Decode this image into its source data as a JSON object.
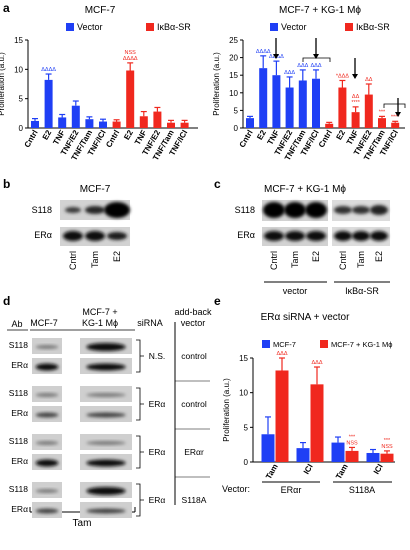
{
  "panels": {
    "a": "a",
    "b": "b",
    "c": "c",
    "d": "d",
    "e": "e"
  },
  "colors": {
    "vector": "#1f3ff5",
    "ikba": "#f0281e",
    "blot_bg": "#c8c8c8",
    "band": "#141414"
  },
  "chart_data": [
    {
      "panel": "a-left",
      "type": "bar",
      "title": "MCF-7",
      "ylabel": "Proliferation (a.u.)",
      "ylim": [
        0,
        15
      ],
      "yticks": [
        "0",
        "5",
        "10",
        "15"
      ],
      "categories": [
        "Cntrl",
        "E2",
        "TNF",
        "TNF/E2",
        "TNF/Tam",
        "TNF/ICI"
      ],
      "legend": [
        "Vector",
        "IκBα-SR"
      ],
      "series": [
        {
          "name": "Vector",
          "values": [
            1.2,
            8.2,
            1.8,
            3.8,
            1.5,
            1.1
          ],
          "errors": [
            0.4,
            1.0,
            0.5,
            0.8,
            0.4,
            0.4
          ],
          "labels": [
            "",
            "ΔΔΔΔ",
            "",
            "",
            "",
            ""
          ]
        },
        {
          "name": "IκBα-SR",
          "values": [
            1.1,
            9.8,
            2.0,
            2.8,
            0.9,
            0.9
          ],
          "errors": [
            0.3,
            1.3,
            0.8,
            0.7,
            0.4,
            0.4
          ],
          "labels": [
            "",
            "NSS ΔΔΔΔ",
            "",
            "",
            "",
            ""
          ]
        }
      ]
    },
    {
      "panel": "a-right",
      "type": "bar",
      "title": "MCF-7 + KG-1 Mϕ",
      "ylabel": "Proliferation (a.u.)",
      "ylim": [
        0,
        25
      ],
      "yticks": [
        "0",
        "5",
        "10",
        "15",
        "20",
        "25"
      ],
      "categories": [
        "Cntrl",
        "E2",
        "TNF",
        "TNF/E2",
        "TNF/Tam",
        "TNF/ICI"
      ],
      "legend": [
        "Vector",
        "IκBα-SR"
      ],
      "series": [
        {
          "name": "Vector",
          "values": [
            2.8,
            17.0,
            15.0,
            11.5,
            13.5,
            14.0
          ],
          "errors": [
            0.5,
            3.5,
            4.0,
            3.0,
            3.0,
            2.5
          ],
          "labels": [
            "",
            "ΔΔΔΔ",
            "ΔΔΔΔ",
            "ΔΔΔ",
            "ΔΔΔ",
            "ΔΔΔ"
          ]
        },
        {
          "name": "IκBα-SR",
          "values": [
            1.2,
            11.5,
            4.5,
            9.5,
            2.8,
            1.5
          ],
          "errors": [
            0.4,
            2.0,
            1.5,
            3.0,
            0.5,
            0.4
          ],
          "labels": [
            "",
            "*ΔΔΔ",
            "ΔΔ ****",
            "ΔΔ",
            "***",
            "****"
          ]
        }
      ]
    },
    {
      "panel": "e",
      "type": "bar",
      "title": "ERα siRNA + vector",
      "ylabel": "Proliferation (a.u.)",
      "ylim": [
        0,
        15
      ],
      "yticks": [
        "0",
        "5",
        "10",
        "15"
      ],
      "categories": [
        "Tam",
        "ICI",
        "Tam",
        "ICI"
      ],
      "groups": [
        "ERαr",
        "S118A"
      ],
      "group_prefix": "Vector:",
      "legend": [
        "MCF-7",
        "MCF-7 + KG-1 Mϕ"
      ],
      "series": [
        {
          "name": "MCF-7",
          "values": [
            4.0,
            2.0,
            2.8,
            1.3
          ],
          "errors": [
            2.5,
            0.8,
            0.8,
            0.5
          ]
        },
        {
          "name": "MCF-7 + KG-1 Mϕ",
          "values": [
            13.2,
            11.2,
            1.6,
            1.2
          ],
          "errors": [
            1.8,
            2.5,
            0.5,
            0.4
          ],
          "labels": [
            "ΔΔΔ",
            "ΔΔΔ",
            "*** NSS",
            "*** NSS"
          ]
        }
      ]
    }
  ],
  "blot_b": {
    "title": "MCF-7",
    "rows": [
      "S118",
      "ERα"
    ],
    "lanes": [
      "Cntrl",
      "Tam",
      "E2"
    ]
  },
  "blot_c": {
    "title": "MCF-7 + KG-1 Mϕ",
    "rows": [
      "S118",
      "ERα"
    ],
    "lanes": [
      "Cntrl",
      "Tam",
      "E2",
      "Cntrl",
      "Tam",
      "E2"
    ],
    "groups": [
      "vector",
      "IκBα-SR"
    ]
  },
  "blot_d": {
    "headers": {
      "ab": "Ab",
      "mcf7": "MCF-7",
      "kg1": "MCF-7 + KG-1 Mϕ",
      "sirna": "siRNA",
      "addback": "add-back vector"
    },
    "rows": [
      {
        "s118": "S118",
        "era": "ERα",
        "sirna": "N.S.",
        "vector": "control"
      },
      {
        "s118": "S118",
        "era": "ERα",
        "sirna": "ERα",
        "vector": "control"
      },
      {
        "s118": "S118",
        "era": "ERα",
        "sirna": "ERα",
        "vector": "ERαr"
      },
      {
        "s118": "S118",
        "era": "ERα",
        "sirna": "ERα",
        "vector": "S118A"
      }
    ],
    "footer": "Tam"
  }
}
